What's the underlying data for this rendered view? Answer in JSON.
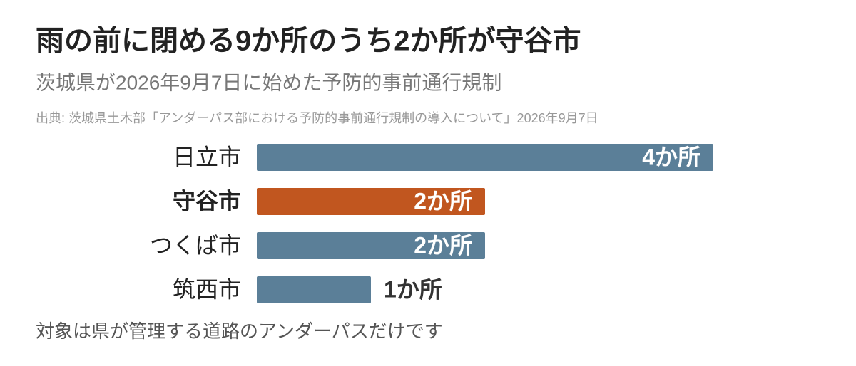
{
  "chart_data": {
    "type": "bar",
    "orientation": "horizontal",
    "title": "雨の前に閉める9か所のうち2か所が守谷市",
    "subtitle": "茨城県が2026年9月7日に始めた予防的事前通行規制",
    "source": "出典: 茨城県土木部「アンダーパス部における予防的事前通行規制の導入について」2026年9月7日",
    "note": "対象は県が管理する道路のアンダーパスだけです",
    "categories": [
      "日立市",
      "守谷市",
      "つくば市",
      "筑西市"
    ],
    "values": [
      4,
      2,
      2,
      1
    ],
    "value_labels": [
      "4か所",
      "2か所",
      "2か所",
      "1か所"
    ],
    "colors": [
      "#5b7f98",
      "#c1561f",
      "#5b7f98",
      "#5b7f98"
    ],
    "highlight": 1
  }
}
